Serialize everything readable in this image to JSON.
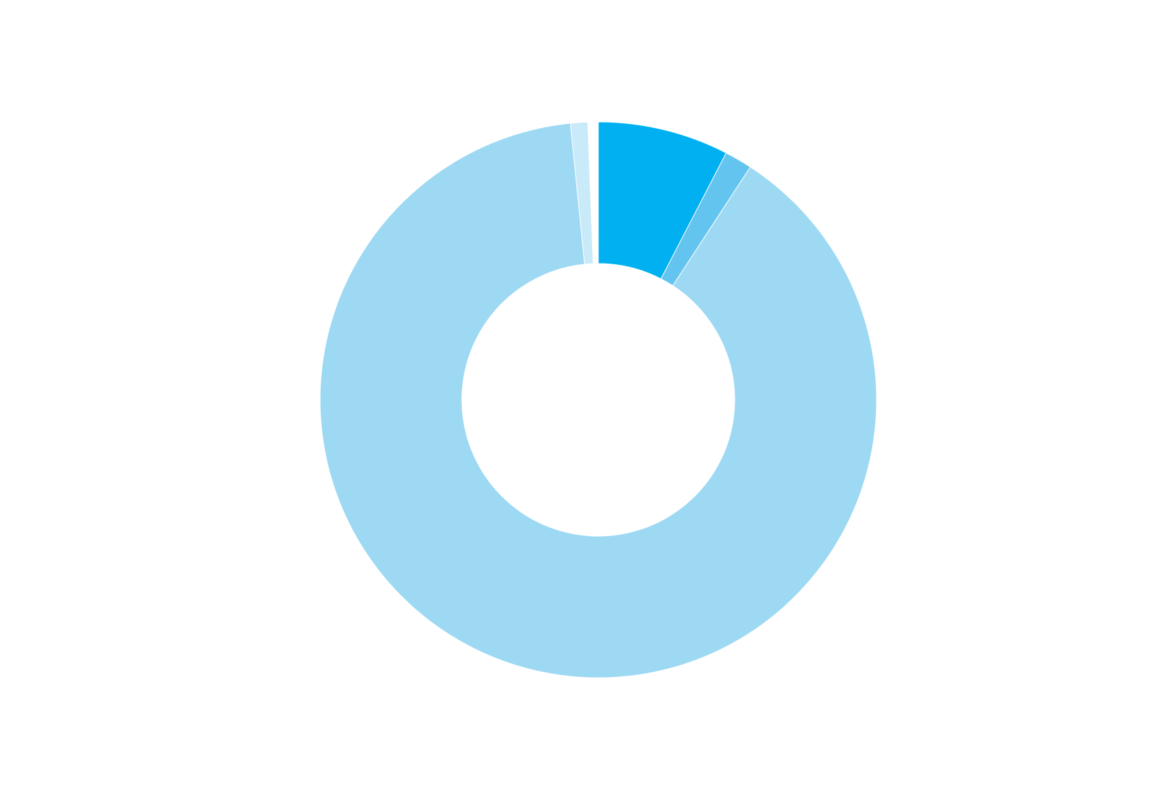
{
  "chart_data": {
    "type": "pie",
    "values": [
      7.6,
      1.6,
      89.2,
      1.0,
      0.6
    ],
    "colors": [
      "#00b0f0",
      "#63c5ef",
      "#9dd9f3",
      "#c9eaf8",
      "#ffffff"
    ]
  }
}
